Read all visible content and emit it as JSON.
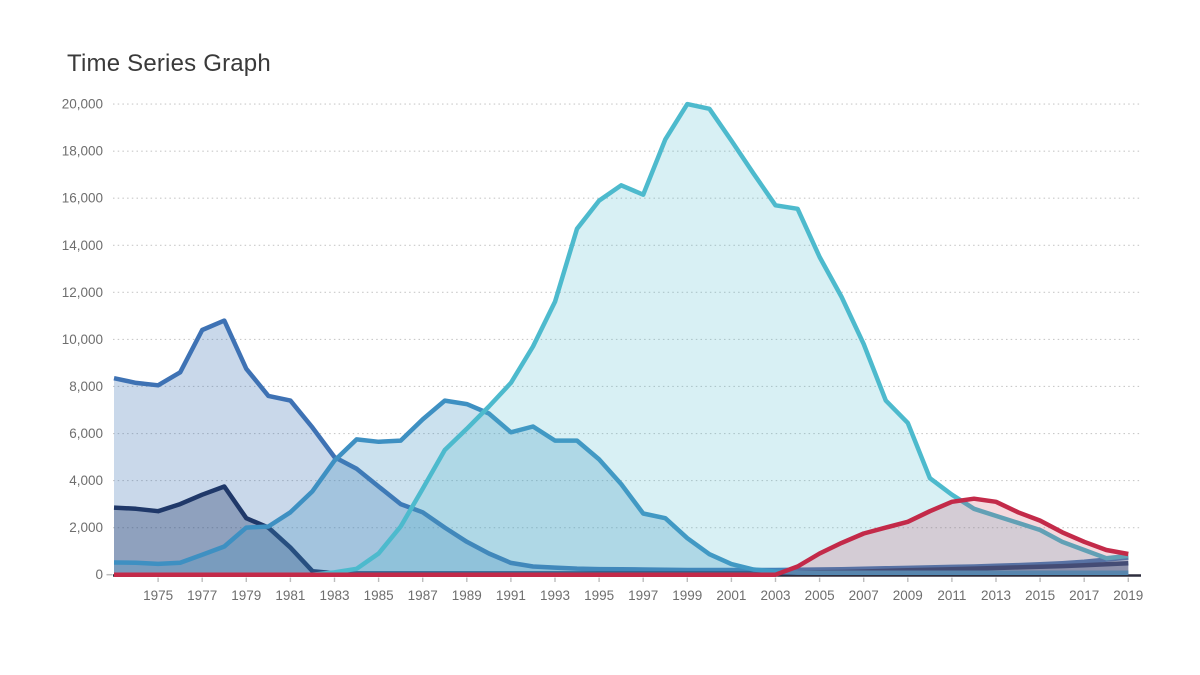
{
  "title": "Time Series Graph",
  "axes": {
    "y_tick_labels": [
      "0",
      "2,000",
      "4,000",
      "6,000",
      "8,000",
      "10,000",
      "12,000",
      "14,000",
      "16,000",
      "18,000",
      "20,000"
    ],
    "x_tick_labels": [
      "1975",
      "1977",
      "1979",
      "1981",
      "1983",
      "1985",
      "1987",
      "1989",
      "1991",
      "1993",
      "1995",
      "1997",
      "1999",
      "2001",
      "2003",
      "2005",
      "2007",
      "2009",
      "2011",
      "2013",
      "2015",
      "2017",
      "2019"
    ]
  },
  "chart_data": {
    "type": "area",
    "title": "Time Series Graph",
    "xlabel": "",
    "ylabel": "",
    "ylim": [
      0,
      20000
    ],
    "y_ticks": [
      0,
      2000,
      4000,
      6000,
      8000,
      10000,
      12000,
      14000,
      16000,
      18000,
      20000
    ],
    "grid": "horizontal-dotted",
    "legend": "none",
    "x": [
      1973,
      1974,
      1975,
      1976,
      1977,
      1978,
      1979,
      1980,
      1981,
      1982,
      1983,
      1984,
      1985,
      1986,
      1987,
      1988,
      1989,
      1990,
      1991,
      1992,
      1993,
      1994,
      1995,
      1996,
      1997,
      1998,
      1999,
      2000,
      2001,
      2002,
      2003,
      2004,
      2005,
      2006,
      2007,
      2008,
      2009,
      2010,
      2011,
      2012,
      2013,
      2014,
      2015,
      2016,
      2017,
      2018,
      2019
    ],
    "series": [
      {
        "name": "blue",
        "color": "#3E72B4",
        "fill_opacity": 0.28,
        "values": [
          8350,
          8150,
          8050,
          8600,
          10400,
          10800,
          8750,
          7600,
          7400,
          6250,
          5000,
          4500,
          3750,
          3000,
          2650,
          2000,
          1400,
          900,
          500,
          350,
          300,
          260,
          240,
          230,
          220,
          210,
          200,
          200,
          200,
          200,
          200,
          210,
          220,
          230,
          250,
          270,
          290,
          310,
          330,
          350,
          380,
          410,
          440,
          490,
          550,
          640,
          730
        ]
      },
      {
        "name": "navy",
        "color": "#1F3869",
        "fill_opacity": 0.34,
        "values": [
          2850,
          2800,
          2700,
          3000,
          3400,
          3750,
          2400,
          2000,
          1150,
          150,
          60,
          55,
          55,
          55,
          55,
          55,
          55,
          55,
          55,
          55,
          55,
          55,
          60,
          60,
          60,
          60,
          60,
          65,
          65,
          70,
          75,
          85,
          100,
          115,
          135,
          160,
          185,
          210,
          235,
          260,
          285,
          310,
          340,
          365,
          400,
          445,
          490
        ]
      },
      {
        "name": "steel-blue",
        "color": "#3E90C2",
        "fill_opacity": 0.27,
        "values": [
          520,
          510,
          460,
          510,
          850,
          1200,
          2000,
          2050,
          2650,
          3550,
          4850,
          5750,
          5650,
          5700,
          6600,
          7400,
          7250,
          6850,
          6050,
          6300,
          5700,
          5700,
          4900,
          3850,
          2600,
          2400,
          1550,
          870,
          450,
          220,
          130,
          90,
          85,
          85,
          85,
          85,
          85,
          85,
          85,
          85,
          85,
          85,
          85,
          85,
          85,
          85,
          85
        ]
      },
      {
        "name": "teal",
        "color": "#4DBACD",
        "fill_opacity": 0.22,
        "values": [
          0,
          0,
          0,
          0,
          0,
          0,
          0,
          0,
          0,
          0,
          100,
          250,
          900,
          2050,
          3650,
          5300,
          6200,
          7150,
          8150,
          9700,
          11600,
          14700,
          15900,
          16550,
          16150,
          18500,
          20000,
          19800,
          18450,
          17050,
          15700,
          15550,
          13500,
          11800,
          9800,
          7400,
          6450,
          4100,
          3400,
          2800,
          2500,
          2200,
          1900,
          1400,
          1050,
          700,
          800
        ]
      },
      {
        "name": "crimson",
        "color": "#C32A49",
        "fill_opacity": 0.18,
        "values": [
          0,
          0,
          0,
          0,
          0,
          0,
          0,
          0,
          0,
          0,
          0,
          0,
          0,
          0,
          0,
          0,
          0,
          0,
          0,
          0,
          0,
          0,
          0,
          0,
          0,
          0,
          0,
          0,
          0,
          0,
          0,
          350,
          900,
          1350,
          1750,
          2000,
          2250,
          2700,
          3100,
          3230,
          3100,
          2650,
          2300,
          1800,
          1400,
          1050,
          880
        ]
      }
    ]
  },
  "style": {
    "grid_color": "#c9c9c9",
    "axis_line_color": "#2e2e3e",
    "tick_color": "#bdbdbd",
    "label_color": "#6e6e6e",
    "title_color": "#3a3a3a",
    "background": "#ffffff"
  }
}
